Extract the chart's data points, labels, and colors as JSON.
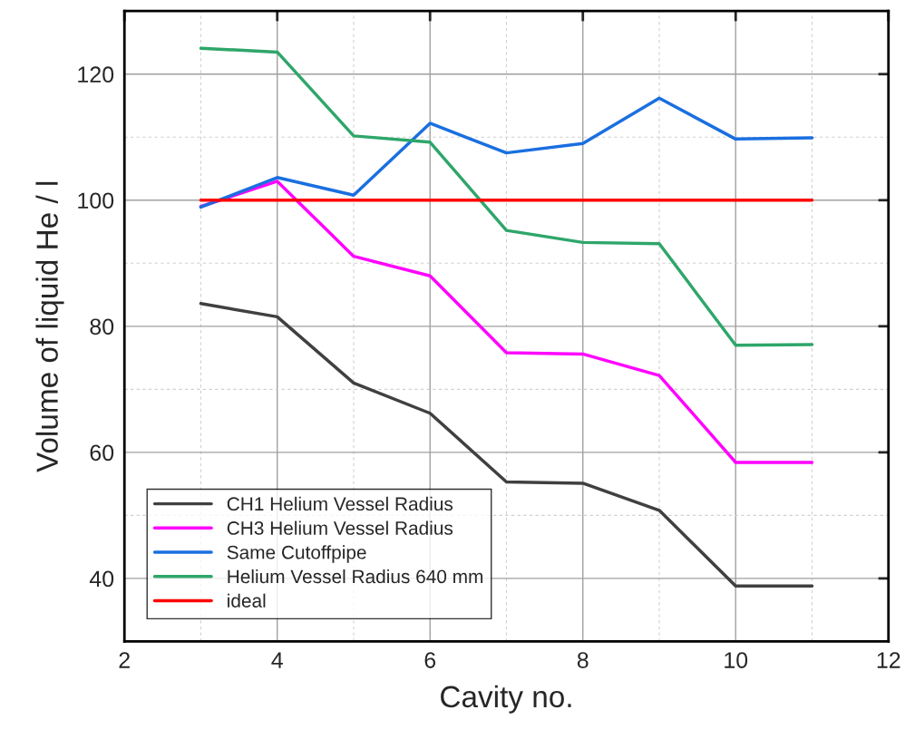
{
  "chart_data": {
    "type": "line",
    "xlabel": "Cavity no.",
    "ylabel": "Volume of liquid He / l",
    "x": [
      3,
      4,
      5,
      6,
      7,
      8,
      9,
      10,
      11
    ],
    "series": [
      {
        "name": "CH1 Helium Vessel Radius",
        "color": "#404040",
        "values": [
          83.6,
          81.5,
          71,
          66.2,
          55.3,
          55.1,
          50.8,
          38.8,
          38.8
        ]
      },
      {
        "name": "CH3 Helium Vessel Radius",
        "color": "#ff00ff",
        "values": [
          99,
          103,
          91.1,
          88,
          75.8,
          75.6,
          72.2,
          58.4,
          58.4
        ]
      },
      {
        "name": "Same Cutoffpipe",
        "color": "#1a6fe0",
        "values": [
          98.9,
          103.6,
          100.8,
          112.2,
          107.5,
          109,
          116.2,
          109.7,
          109.9
        ]
      },
      {
        "name": "Helium Vessel Radius 640 mm",
        "color": "#2ea66a",
        "values": [
          124.1,
          123.5,
          110.2,
          109.2,
          95.2,
          93.3,
          93.1,
          77,
          77.1
        ]
      },
      {
        "name": "ideal",
        "color": "#ff0000",
        "values": [
          100,
          100,
          100,
          100,
          100,
          100,
          100,
          100,
          100
        ]
      }
    ],
    "xlim": [
      2,
      12
    ],
    "xticks": [
      2,
      4,
      6,
      8,
      10,
      12
    ],
    "ylim": [
      30,
      130
    ],
    "yticks": [
      40,
      60,
      80,
      100,
      120
    ],
    "grid": true,
    "legend": "bottom left",
    "marker": "none",
    "line_style": "solid"
  }
}
